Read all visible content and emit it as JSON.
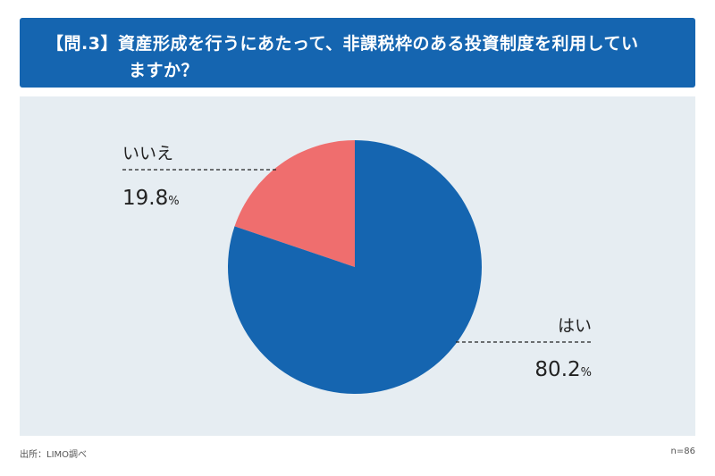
{
  "header": {
    "title_line1": "【問.3】資産形成を行うにあたって、非課税枠のある投資制度を利用してい",
    "title_line2": "ますか？"
  },
  "footer": {
    "source": "出所：LIMO調べ",
    "n": "n=86"
  },
  "chart_data": {
    "type": "pie",
    "title": "【問.3】資産形成を行うにあたって、非課税枠のある投資制度を利用していますか？",
    "start_angle_deg": 0,
    "direction": "counterclockwise",
    "legend": "none",
    "slices": [
      {
        "label": "いいえ",
        "value": 19.8,
        "value_text": "19.8",
        "unit": "%",
        "color": "#ef6e6e"
      },
      {
        "label": "はい",
        "value": 80.2,
        "value_text": "80.2",
        "unit": "%",
        "color": "#1565b0"
      }
    ]
  }
}
